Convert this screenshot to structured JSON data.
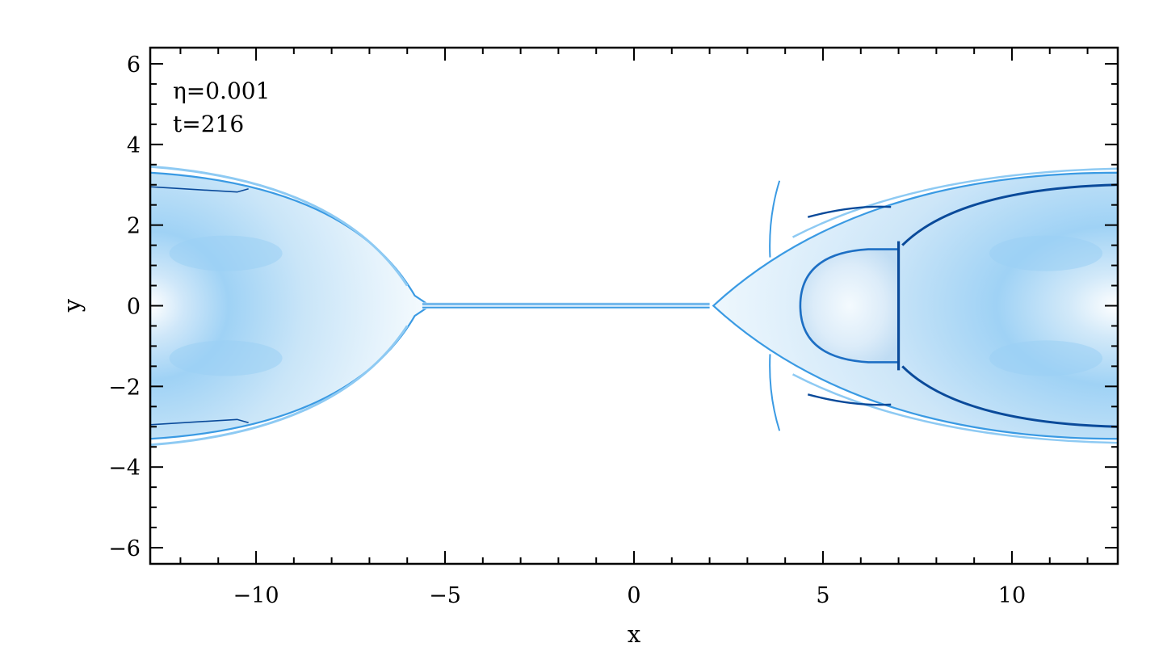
{
  "chart_data": {
    "type": "heatmap",
    "title": "",
    "xlabel": "x",
    "ylabel": "y",
    "xlim": [
      -12.8,
      12.8
    ],
    "ylim": [
      -6.4,
      6.4
    ],
    "x_ticks": [
      -10,
      -5,
      0,
      5,
      10
    ],
    "x_tick_labels": [
      "−10",
      "−5",
      "0",
      "5",
      "10"
    ],
    "y_ticks": [
      -6,
      -4,
      -2,
      0,
      2,
      4,
      6
    ],
    "y_tick_labels": [
      "−6",
      "−4",
      "−2",
      "0",
      "2",
      "4",
      "6"
    ],
    "annotations": [
      "η=0.001",
      "t=216"
    ],
    "grid": false,
    "colormap": [
      "#ffffff",
      "#d6ecfb",
      "#8ecaf3",
      "#3a9ae3",
      "#0a4a9a"
    ],
    "features": {
      "current_sheet": {
        "x_from": -5.6,
        "x_to": 2.0,
        "y": 0.0
      },
      "left_plasmoid": {
        "x_from": -12.8,
        "x_tip": -5.8,
        "y_half_width": 3.3
      },
      "right_plasmoid": {
        "x_tip": 2.4,
        "x_to": 12.8,
        "y_half_width": 3.3
      },
      "inner_loop": {
        "x_front": 4.4,
        "x_back": 7.0,
        "y_half_width": 1.4
      },
      "shock_arcs": {
        "x": 3.6,
        "y_from": 1.2,
        "y_to": 3.1
      }
    }
  }
}
